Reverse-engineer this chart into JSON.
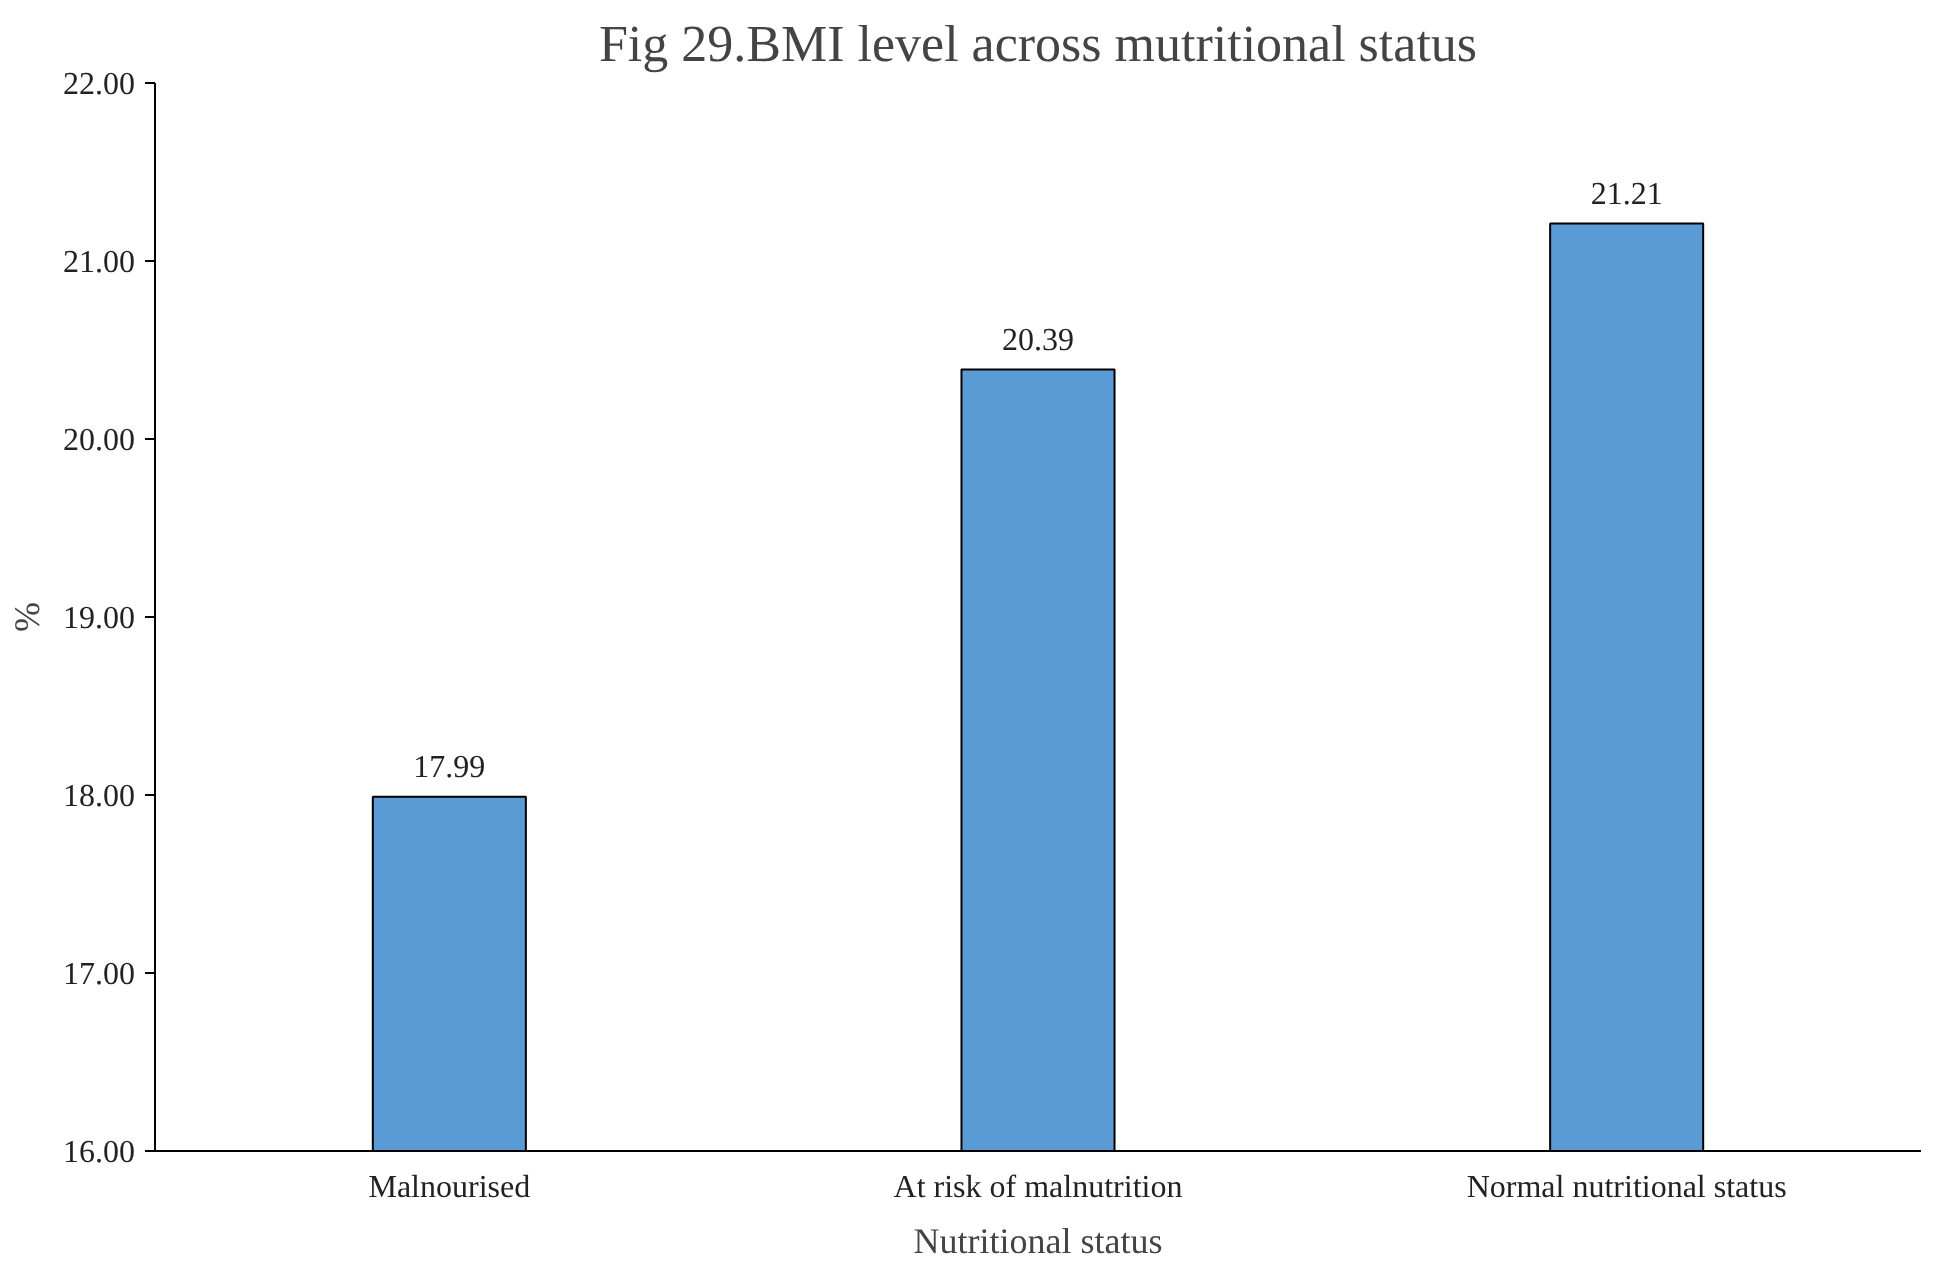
{
  "chart_data": {
    "type": "bar",
    "title": "Fig 29.BMI level across mutritional status",
    "xlabel": "Nutritional status",
    "ylabel": "%",
    "categories": [
      "Malnourised",
      "At risk of malnutrition",
      "Normal nutritional status"
    ],
    "values": [
      17.99,
      20.39,
      21.21
    ],
    "color": "#5b9bd5",
    "data_labels": true,
    "grid": false,
    "legend": false,
    "ylim": [
      16,
      22
    ],
    "yticks": [
      {
        "value": 16,
        "label": "16.00"
      },
      {
        "value": 17,
        "label": "17.00"
      },
      {
        "value": 18,
        "label": "18.00"
      },
      {
        "value": 19,
        "label": "19.00"
      },
      {
        "value": 20,
        "label": "20.00"
      },
      {
        "value": 21,
        "label": "21.00"
      },
      {
        "value": 22,
        "label": "22.00"
      }
    ]
  }
}
